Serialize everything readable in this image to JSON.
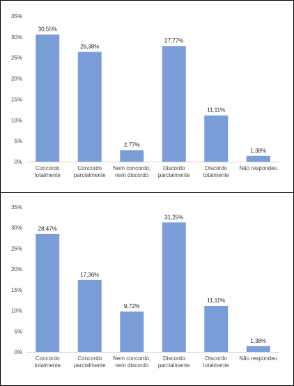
{
  "chart_data": [
    {
      "type": "bar",
      "categories": [
        [
          "Concordo",
          "totalmente"
        ],
        [
          "Concordo",
          "parcialmente"
        ],
        [
          "Nem concordo,",
          "nem discordo"
        ],
        [
          "Discordo",
          "parcialmente"
        ],
        [
          "Discordo",
          "totalmente"
        ],
        [
          "Não respondeu"
        ]
      ],
      "values": [
        30.55,
        26.38,
        2.77,
        27.77,
        11.11,
        1.38
      ],
      "data_labels": [
        "30,55%",
        "26,38%",
        "2,77%",
        "27,77%",
        "11,11%",
        "1,38%"
      ],
      "yticks": [
        "0%",
        "5%",
        "10%",
        "15%",
        "20%",
        "25%",
        "30%",
        "35%"
      ],
      "ylim": [
        0,
        35
      ],
      "bar_color": "#7b9dd8",
      "grid": false
    },
    {
      "type": "bar",
      "categories": [
        [
          "Concordo",
          "totalmente"
        ],
        [
          "Concordo",
          "parcialmente"
        ],
        [
          "Nem concordo,",
          "nem discordo"
        ],
        [
          "Discordo",
          "parcialmente"
        ],
        [
          "Discordo",
          "totalmente"
        ],
        [
          "Não respondeu"
        ]
      ],
      "values": [
        28.47,
        17.36,
        9.72,
        31.25,
        11.11,
        1.38
      ],
      "data_labels": [
        "28,47%",
        "17,36%",
        "9,72%",
        "31,25%",
        "11,11%",
        "1,38%"
      ],
      "yticks": [
        "0%",
        "5%",
        "10%",
        "15%",
        "20%",
        "25%",
        "30%",
        "35%"
      ],
      "ylim": [
        0,
        35
      ],
      "bar_color": "#7b9dd8",
      "grid": false
    }
  ]
}
